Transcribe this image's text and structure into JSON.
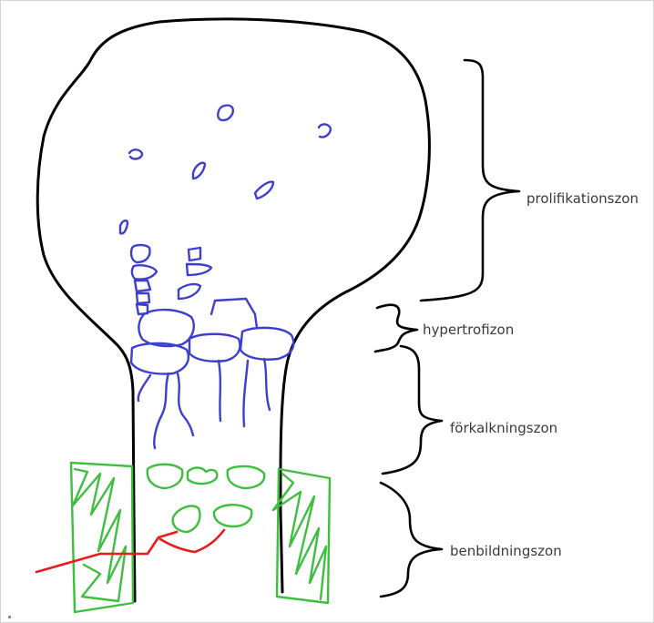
{
  "labels": {
    "prolifikation": "prolifikationszon",
    "hypertrofi": "hypertrofizon",
    "forkalkning": "förkalkningszon",
    "benbildning": "benbildningszon"
  },
  "colors": {
    "outline": "#000000",
    "cells": "#3f3fcf",
    "bone": "#3fbf3f",
    "vessel": "#e81c1c",
    "label_text": "#3a3a3a",
    "background": "#ffffff"
  }
}
